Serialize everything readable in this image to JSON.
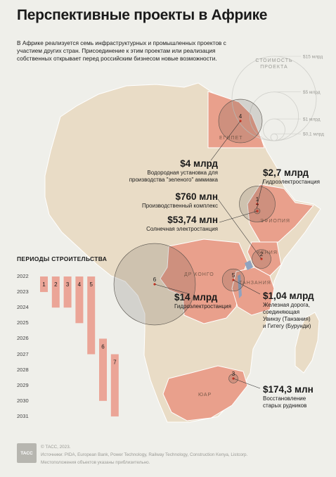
{
  "title": "Перспективные проекты в Африке",
  "intro": "В Африке реализуется семь инфраструктурных и промышленных проектов с участием других стран. Присоединение к этим проектам или реализация собственных открывает перед российским бизнесом новые возможности.",
  "legend": {
    "title_line1": "СТОИМОСТЬ",
    "title_line2": "ПРОЕКТА",
    "items": [
      {
        "label": "$15 млрд",
        "value_bn": 15
      },
      {
        "label": "$5 млрд",
        "value_bn": 5
      },
      {
        "label": "$1 млрд",
        "value_bn": 1
      },
      {
        "label": "$0,1 млрд",
        "value_bn": 0.1
      }
    ]
  },
  "countries": [
    {
      "name": "ЕГИПЕТ"
    },
    {
      "name": "ЭФИОПИЯ"
    },
    {
      "name": "КЕНИЯ"
    },
    {
      "name": "ДР КОНГО"
    },
    {
      "name": "ТАНЗАНИЯ"
    },
    {
      "name": "ЮАР"
    }
  ],
  "projects": [
    {
      "num": "1",
      "amount": "$2,7 млрд",
      "desc": [
        "Гидроэлектростанция"
      ],
      "value_bn": 2.7,
      "start": 2022,
      "end": 2023
    },
    {
      "num": "2",
      "amount": "$760 млн",
      "desc": [
        "Производственный комплекс"
      ],
      "value_bn": 0.76,
      "start": 2022,
      "end": 2024
    },
    {
      "num": "3",
      "amount": "$174,3 млн",
      "desc": [
        "Восстановление",
        "старых рудников"
      ],
      "value_bn": 0.1743,
      "start": 2022,
      "end": 2024
    },
    {
      "num": "4",
      "amount": "$4 млрд",
      "desc": [
        "Водородная установка для",
        "производства \"зеленого\" аммиака"
      ],
      "value_bn": 4,
      "start": 2022,
      "end": 2025
    },
    {
      "num": "5",
      "amount": "$1,04 млрд",
      "desc": [
        "Железная дорога,",
        "соединяющая",
        "Увинзу (Танзания)",
        "и Гитегу (Бурунди)"
      ],
      "value_bn": 1.04,
      "start": 2022,
      "end": 2027
    },
    {
      "num": "6",
      "amount": "$14 млрд",
      "desc": [
        "Гидроэлектростанция"
      ],
      "value_bn": 14,
      "start": 2026,
      "end": 2030
    },
    {
      "num": "7",
      "amount": "$53,74 млн",
      "desc": [
        "Солнечная электростанция"
      ],
      "value_bn": 0.05374,
      "start": 2027,
      "end": 2031
    }
  ],
  "schedule": {
    "title": "ПЕРИОДЫ СТРОИТЕЛЬСТВА",
    "years": [
      "2022",
      "2023",
      "2024",
      "2025",
      "2026",
      "2027",
      "2028",
      "2029",
      "2030",
      "2031"
    ]
  },
  "footer": {
    "logo": "ТАСС",
    "copyright": "© ТАСС, 2023.",
    "sources": "Источники: PIDA, European Bank, Power Technology, Railway Technology, Construction Kenya, Listcorp.",
    "note": "Местоположения объектов указаны приблизительно."
  },
  "colors": {
    "background": "#efefea",
    "land": "#e9dcc6",
    "highlight": "#e9a08c",
    "bar": "#eba597",
    "accent": "#cc3322"
  }
}
